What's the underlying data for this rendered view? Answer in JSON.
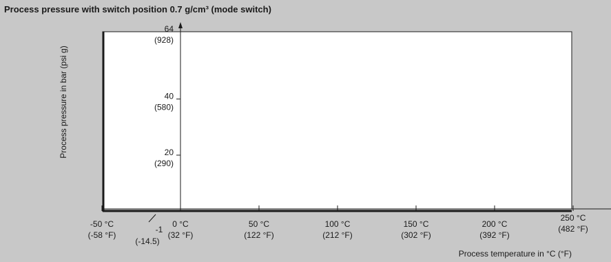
{
  "chart_data": {
    "type": "line",
    "title": "Process pressure with switch position 0.7 g/cm³ (mode switch)",
    "xlabel": "Process temperature in °C (°F)",
    "ylabel": "Process pressure in bar (psi g)",
    "xlim": [
      -50,
      250
    ],
    "ylim": [
      -1,
      64
    ],
    "grid": false,
    "x_ticks": [
      {
        "value": -50,
        "line1": "-50 °C",
        "line2": "(-58 °F)"
      },
      {
        "value": 0,
        "line1": "0 °C",
        "line2": "(32 °F)"
      },
      {
        "value": 50,
        "line1": "50 °C",
        "line2": "(122 °F)"
      },
      {
        "value": 100,
        "line1": "100 °C",
        "line2": "(212 °F)"
      },
      {
        "value": 150,
        "line1": "150 °C",
        "line2": "(302 °F)"
      },
      {
        "value": 200,
        "line1": "200 °C",
        "line2": "(392 °F)"
      },
      {
        "value": 250,
        "line1": "250 °C",
        "line2": "(482 °F)"
      }
    ],
    "y_ticks": [
      {
        "value": 64,
        "line1": "64",
        "line2": "(928)"
      },
      {
        "value": 40,
        "line1": "40",
        "line2": "(580)"
      },
      {
        "value": 20,
        "line1": "20",
        "line2": "(290)"
      },
      {
        "value": -1,
        "line1": "-1",
        "line2": "(-14.5)"
      }
    ],
    "series": []
  }
}
